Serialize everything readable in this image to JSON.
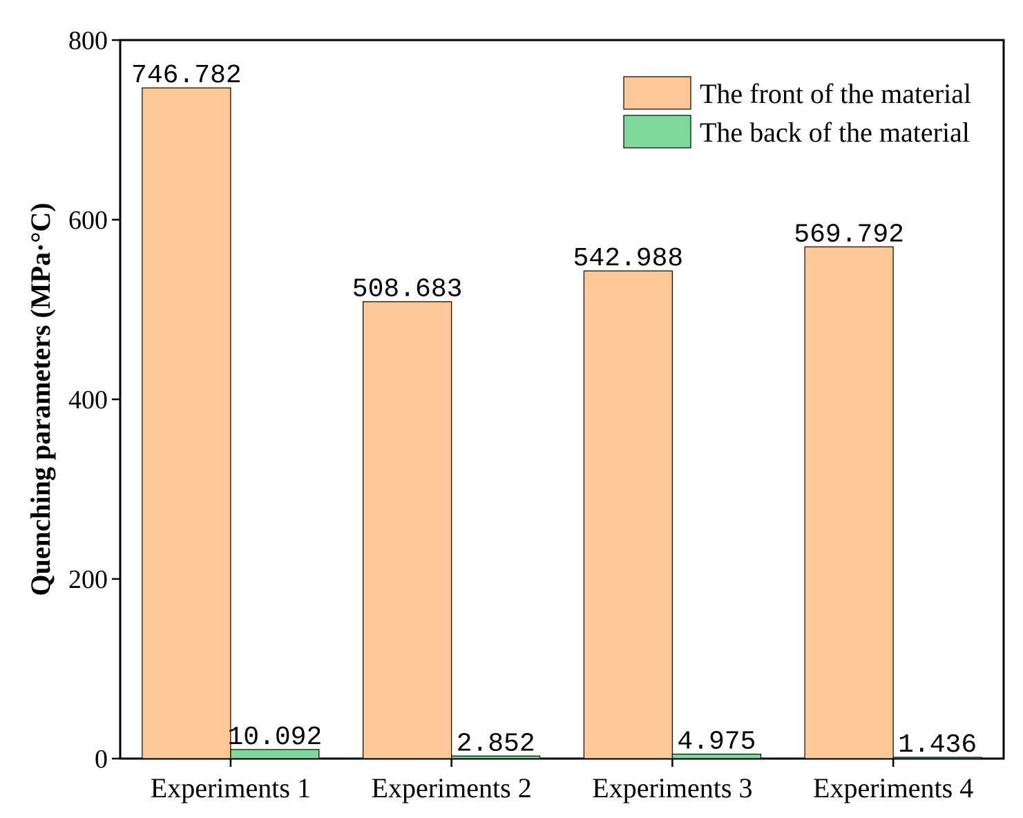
{
  "chart_data": {
    "type": "bar",
    "title": "",
    "xlabel": "",
    "ylabel": "Quenching parameters (MPa·°C)",
    "ylim": [
      0,
      800
    ],
    "yticks": [
      0,
      200,
      400,
      600,
      800
    ],
    "categories": [
      "Experiments 1",
      "Experiments 2",
      "Experiments 3",
      "Experiments 4"
    ],
    "series": [
      {
        "name": "The front of the material",
        "color": "#FFC896",
        "values": [
          746.782,
          508.683,
          542.988,
          569.792
        ],
        "labels": [
          "746.782",
          "508.683",
          "542.988",
          "569.792"
        ]
      },
      {
        "name": "The back of the material",
        "color": "#7FD99A",
        "values": [
          10.092,
          2.852,
          4.975,
          1.436
        ],
        "labels": [
          "10.092",
          "2.852",
          "4.975",
          "1.436"
        ]
      }
    ],
    "legend_position": "top-right",
    "grid": false
  }
}
